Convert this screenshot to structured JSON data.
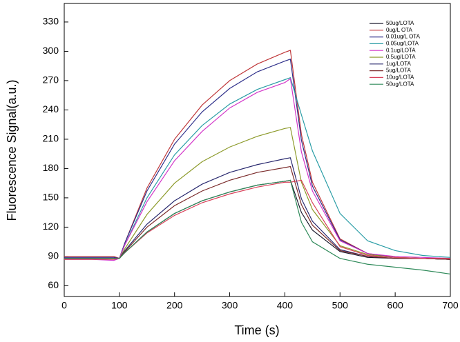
{
  "chart_data": {
    "type": "line",
    "xlabel": "Time (s)",
    "ylabel": "Fluorescence Signal(a.u.)",
    "x": [
      0,
      50,
      90,
      100,
      110,
      150,
      200,
      250,
      300,
      350,
      400,
      410,
      430,
      450,
      500,
      550,
      600,
      650,
      700
    ],
    "xlim": [
      0,
      700
    ],
    "xticks": [
      0,
      100,
      200,
      300,
      400,
      500,
      600,
      700
    ],
    "ylim": [
      49,
      349
    ],
    "yticks": [
      60,
      90,
      120,
      150,
      180,
      210,
      240,
      270,
      300,
      330
    ],
    "legend": "upper right",
    "series": [
      {
        "name": "50ug/LOTA",
        "color": "#1a1a2e",
        "values": [
          88,
          88,
          88,
          88,
          94,
          115,
          134,
          147,
          156,
          163,
          167,
          168,
          135,
          117,
          95,
          89,
          88,
          88,
          87
        ]
      },
      {
        "name": "0ug/L OTA",
        "color": "#c0393b",
        "values": [
          90,
          90,
          90,
          88,
          104,
          160,
          210,
          245,
          270,
          287,
          299,
          301,
          215,
          166,
          108,
          93,
          89,
          88,
          87
        ]
      },
      {
        "name": "0.01ug/L OTA",
        "color": "#2e2f8a",
        "values": [
          89,
          89,
          89,
          88,
          104,
          157,
          205,
          238,
          262,
          279,
          290,
          292,
          209,
          162,
          107,
          93,
          89,
          88,
          87
        ]
      },
      {
        "name": "0.05ug/LOTA",
        "color": "#2a9da6",
        "values": [
          88,
          88,
          88,
          88,
          102,
          150,
          194,
          224,
          246,
          261,
          271,
          273,
          235,
          198,
          134,
          106,
          96,
          91,
          89
        ]
      },
      {
        "name": "0.1ug/LOTA",
        "color": "#d335c9",
        "values": [
          87,
          87,
          86,
          88,
          102,
          146,
          188,
          218,
          242,
          258,
          268,
          272,
          197,
          157,
          106,
          93,
          90,
          89,
          88
        ]
      },
      {
        "name": "0.5ug/LOTA",
        "color": "#8c9a2a",
        "values": [
          88,
          88,
          88,
          88,
          98,
          133,
          165,
          187,
          202,
          213,
          221,
          222,
          166,
          138,
          101,
          92,
          89,
          88,
          87
        ]
      },
      {
        "name": "1ug/LOTA",
        "color": "#28286e",
        "values": [
          88,
          88,
          88,
          88,
          96,
          123,
          147,
          164,
          176,
          184,
          190,
          191,
          149,
          126,
          97,
          90,
          88,
          88,
          87
        ]
      },
      {
        "name": "5ug/LOTA",
        "color": "#7a2a2a",
        "values": [
          88,
          88,
          88,
          88,
          95,
          120,
          142,
          157,
          168,
          176,
          181,
          182,
          143,
          122,
          96,
          90,
          88,
          88,
          87
        ]
      },
      {
        "name": "10ug/LOTA",
        "color": "#d9415a",
        "values": [
          87,
          87,
          87,
          88,
          94,
          114,
          132,
          145,
          154,
          161,
          166,
          166,
          168,
          145,
          100,
          91,
          89,
          88,
          88
        ]
      },
      {
        "name": "50ug/LOTA",
        "color": "#2f8a5a",
        "values": [
          88,
          88,
          88,
          88,
          94,
          115,
          134,
          147,
          156,
          163,
          167,
          168,
          125,
          105,
          88,
          82,
          79,
          76,
          72
        ]
      }
    ]
  }
}
